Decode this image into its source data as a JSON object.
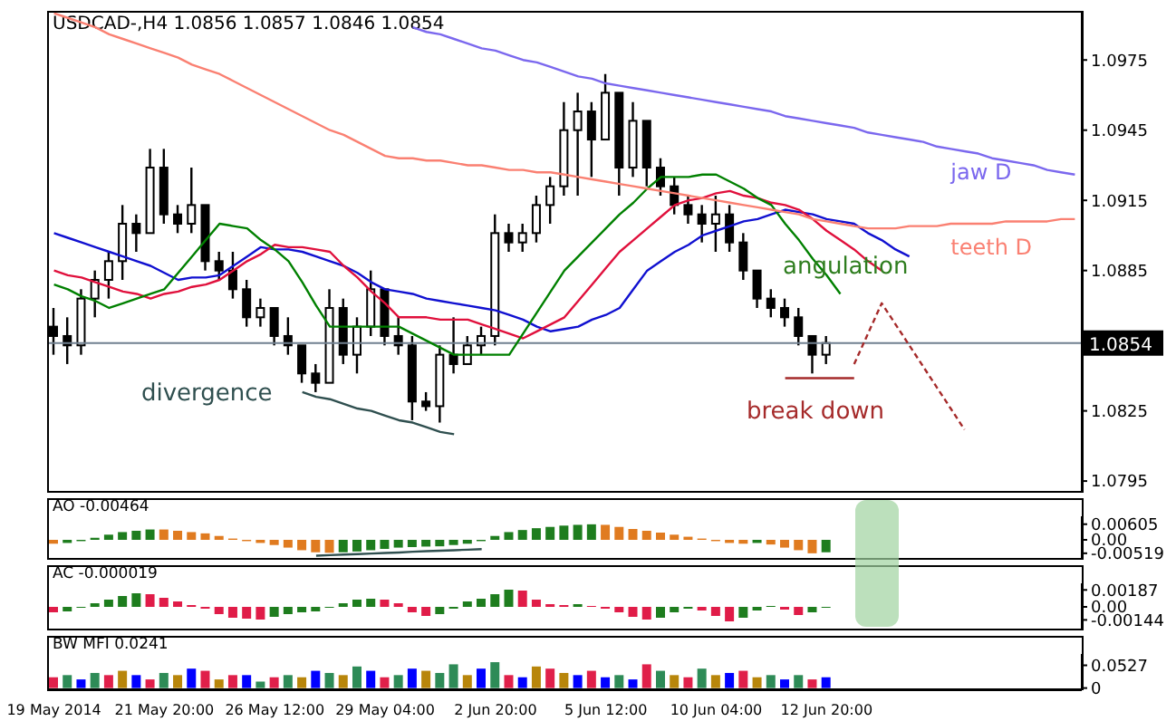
{
  "chart_data": [
    {
      "type": "candlestick",
      "title": "USDCAD-,H4 1.0856 1.0857 1.0846 1.0854",
      "ohlc": [
        [
          1.0861,
          1.0869,
          1.0849,
          1.0857
        ],
        [
          1.0857,
          1.0865,
          1.0845,
          1.0853
        ],
        [
          1.0853,
          1.0877,
          1.0849,
          1.0873
        ],
        [
          1.0873,
          1.0885,
          1.0865,
          1.0881
        ],
        [
          1.0881,
          1.0893,
          1.0873,
          1.0889
        ],
        [
          1.0889,
          1.0913,
          1.0881,
          1.0905
        ],
        [
          1.0905,
          1.0909,
          1.0893,
          1.0901
        ],
        [
          1.0901,
          1.0937,
          1.0901,
          1.0929
        ],
        [
          1.0929,
          1.0937,
          1.0905,
          1.0909
        ],
        [
          1.0909,
          1.0913,
          1.0901,
          1.0905
        ],
        [
          1.0905,
          1.0929,
          1.0901,
          1.0913
        ],
        [
          1.0913,
          1.0913,
          1.0885,
          1.0889
        ],
        [
          1.0889,
          1.0893,
          1.0881,
          1.0885
        ],
        [
          1.0885,
          1.0893,
          1.0873,
          1.0877
        ],
        [
          1.0877,
          1.0881,
          1.0861,
          1.0865
        ],
        [
          1.0865,
          1.0873,
          1.0861,
          1.0869
        ],
        [
          1.0869,
          1.0869,
          1.0853,
          1.0857
        ],
        [
          1.0857,
          1.0865,
          1.0849,
          1.0853
        ],
        [
          1.0853,
          1.0853,
          1.0837,
          1.0841
        ],
        [
          1.0841,
          1.0845,
          1.0833,
          1.0837
        ],
        [
          1.0837,
          1.0877,
          1.0837,
          1.0869
        ],
        [
          1.0869,
          1.0873,
          1.0845,
          1.0849
        ],
        [
          1.0849,
          1.0865,
          1.0841,
          1.0861
        ],
        [
          1.0861,
          1.0885,
          1.0857,
          1.0877
        ],
        [
          1.0877,
          1.0877,
          1.0853,
          1.0857
        ],
        [
          1.0857,
          1.0865,
          1.0849,
          1.0853
        ],
        [
          1.0853,
          1.0857,
          1.0821,
          1.0829
        ],
        [
          1.0829,
          1.0833,
          1.0825,
          1.0827
        ],
        [
          1.0827,
          1.0853,
          1.082,
          1.0849
        ],
        [
          1.0849,
          1.0865,
          1.0841,
          1.0845
        ],
        [
          1.0845,
          1.0857,
          1.0845,
          1.0853
        ],
        [
          1.0853,
          1.0861,
          1.0849,
          1.0857
        ],
        [
          1.0857,
          1.0909,
          1.0853,
          1.0901
        ],
        [
          1.0901,
          1.0905,
          1.0893,
          1.0897
        ],
        [
          1.0897,
          1.0905,
          1.0893,
          1.0901
        ],
        [
          1.0901,
          1.0917,
          1.0897,
          1.0913
        ],
        [
          1.0913,
          1.0925,
          1.0905,
          1.0921
        ],
        [
          1.0921,
          1.0957,
          1.0917,
          1.0945
        ],
        [
          1.0945,
          1.0961,
          1.0917,
          1.0953
        ],
        [
          1.0953,
          1.0957,
          1.0925,
          1.0941
        ],
        [
          1.0941,
          1.0969,
          1.0941,
          1.0961
        ],
        [
          1.0961,
          1.0961,
          1.0917,
          1.0929
        ],
        [
          1.0929,
          1.0957,
          1.0925,
          1.0949
        ],
        [
          1.0949,
          1.0949,
          1.0921,
          1.0929
        ],
        [
          1.0929,
          1.0933,
          1.0917,
          1.0921
        ],
        [
          1.0921,
          1.0925,
          1.0909,
          1.0913
        ],
        [
          1.0913,
          1.0917,
          1.0905,
          1.0909
        ],
        [
          1.0909,
          1.0913,
          1.0897,
          1.0905
        ],
        [
          1.0905,
          1.0917,
          1.0893,
          1.0909
        ],
        [
          1.0909,
          1.0913,
          1.0893,
          1.0897
        ],
        [
          1.0897,
          1.0901,
          1.0881,
          1.0885
        ],
        [
          1.0885,
          1.0885,
          1.0869,
          1.0873
        ],
        [
          1.0873,
          1.0877,
          1.0865,
          1.0869
        ],
        [
          1.0869,
          1.0873,
          1.0861,
          1.0865
        ],
        [
          1.0865,
          1.0869,
          1.0853,
          1.0857
        ],
        [
          1.0857,
          1.0857,
          1.0841,
          1.0849
        ],
        [
          1.0849,
          1.0857,
          1.0845,
          1.0854
        ],
        null,
        null,
        null,
        null,
        null,
        null,
        null,
        null,
        null,
        null,
        null,
        null,
        null,
        null,
        null,
        null,
        null,
        null
      ],
      "series": [
        {
          "type": "line",
          "color": "#1010d0",
          "values": [
            1.0901,
            1.0899,
            1.0897,
            1.0895,
            1.0893,
            1.0891,
            1.0889,
            1.0887,
            1.0884,
            1.0881,
            1.0882,
            1.0882,
            1.0883,
            1.0887,
            1.0891,
            1.0895,
            1.0894,
            1.0894,
            1.0893,
            1.0891,
            1.0889,
            1.0887,
            1.0884,
            1.088,
            1.0877,
            1.0876,
            1.0875,
            1.0873,
            1.0872,
            1.0871,
            1.087,
            1.0869,
            1.0868,
            1.0866,
            1.0864,
            1.0861,
            1.0859,
            1.086,
            1.0861,
            1.0864,
            1.0866,
            1.0869,
            1.0877,
            1.0885,
            1.0889,
            1.0893,
            1.0896,
            1.09,
            1.0902,
            1.0904,
            1.0906,
            1.0907,
            1.0909,
            1.0911,
            1.091,
            1.0909,
            1.0907,
            1.0906,
            1.0905,
            1.0901,
            1.0898,
            1.0894,
            1.0891,
            null,
            null,
            null,
            null,
            null,
            null,
            null,
            null,
            null,
            null,
            null,
            null
          ]
        },
        {
          "type": "line",
          "color": "#e0103c",
          "values": [
            1.0885,
            1.0883,
            1.0882,
            1.088,
            1.0878,
            1.0876,
            1.0875,
            1.0873,
            1.0875,
            1.0876,
            1.0878,
            1.0879,
            1.0881,
            1.0885,
            1.0889,
            1.0892,
            1.0896,
            1.0895,
            1.0895,
            1.0894,
            1.0893,
            1.0887,
            1.0882,
            1.0876,
            1.0871,
            1.0865,
            1.0865,
            1.0865,
            1.0864,
            1.0864,
            1.0864,
            1.0862,
            1.086,
            1.0858,
            1.0856,
            1.0859,
            1.0862,
            1.0865,
            1.0872,
            1.0879,
            1.0886,
            1.0893,
            1.0898,
            1.0903,
            1.0908,
            1.0913,
            1.0915,
            1.0916,
            1.0918,
            1.0919,
            1.0917,
            1.0916,
            1.0914,
            1.0913,
            1.0911,
            1.0907,
            1.0902,
            1.0898,
            1.0894,
            1.0889,
            1.0885,
            null,
            null,
            null,
            null,
            null,
            null,
            null,
            null,
            null,
            null,
            null,
            null,
            null,
            null
          ]
        },
        {
          "type": "line",
          "color": "#008000",
          "values": [
            1.0879,
            1.0877,
            1.0874,
            1.0872,
            1.0869,
            1.0871,
            1.0873,
            1.0875,
            1.0877,
            1.0884,
            1.0891,
            1.0898,
            1.0905,
            1.0904,
            1.0903,
            1.0898,
            1.0894,
            1.0889,
            1.088,
            1.087,
            1.0861,
            1.0861,
            1.0861,
            1.0861,
            1.0861,
            1.0861,
            1.0858,
            1.0855,
            1.0852,
            1.0849,
            1.0849,
            1.0849,
            1.0849,
            1.0849,
            1.0858,
            1.0867,
            1.0876,
            1.0885,
            1.0891,
            1.0897,
            1.0903,
            1.0909,
            1.0914,
            1.092,
            1.0925,
            1.0925,
            1.0925,
            1.0926,
            1.0926,
            1.0923,
            1.092,
            1.0916,
            1.0913,
            1.0905,
            1.0898,
            1.089,
            1.0883,
            1.0875,
            null,
            null,
            null,
            null,
            null,
            null,
            null,
            null,
            null,
            null,
            null,
            null,
            null,
            null,
            null,
            null,
            null
          ]
        },
        {
          "type": "line",
          "name": "jaw D",
          "color": "#7b68ee",
          "values": [
            null,
            null,
            null,
            null,
            null,
            null,
            null,
            null,
            null,
            null,
            null,
            null,
            null,
            null,
            null,
            null,
            null,
            null,
            null,
            null,
            null,
            null,
            null,
            null,
            null,
            null,
            1.0989,
            1.0987,
            1.0986,
            1.0984,
            1.0982,
            1.098,
            1.0979,
            1.0977,
            1.0975,
            1.0974,
            1.0972,
            1.097,
            1.0968,
            1.0967,
            1.0965,
            1.0964,
            1.0963,
            1.0962,
            1.0961,
            1.096,
            1.0959,
            1.0958,
            1.0957,
            1.0956,
            1.0955,
            1.0954,
            1.0953,
            1.0951,
            1.095,
            1.0949,
            1.0948,
            1.0947,
            1.0946,
            1.0944,
            1.0943,
            1.0942,
            1.0941,
            1.094,
            1.0938,
            1.0937,
            1.0936,
            1.0935,
            1.0933,
            1.0932,
            1.0931,
            1.093,
            1.0928,
            1.0927,
            1.0926
          ]
        },
        {
          "type": "line",
          "name": "teeth D",
          "color": "#fa8072",
          "values": [
            1.0995,
            1.0993,
            1.0991,
            1.0989,
            1.0986,
            1.0984,
            1.0982,
            1.098,
            1.0978,
            1.0976,
            1.0973,
            1.0971,
            1.0969,
            1.0966,
            1.0963,
            1.096,
            1.0957,
            1.0954,
            1.0951,
            1.0948,
            1.0945,
            1.0943,
            1.094,
            1.0937,
            1.0934,
            1.0933,
            1.0933,
            1.0932,
            1.0932,
            1.0931,
            1.093,
            1.093,
            1.0929,
            1.0928,
            1.0928,
            1.0927,
            1.0927,
            1.0926,
            1.0925,
            1.0924,
            1.0923,
            1.0922,
            1.0921,
            1.092,
            1.0919,
            1.0918,
            1.0917,
            1.0916,
            1.0915,
            1.0914,
            1.0913,
            1.0912,
            1.0911,
            1.091,
            1.0909,
            1.0907,
            1.0906,
            1.0905,
            1.0904,
            1.0903,
            1.0903,
            1.0903,
            1.0904,
            1.0904,
            1.0904,
            1.0905,
            1.0905,
            1.0905,
            1.0905,
            1.0906,
            1.0906,
            1.0906,
            1.0906,
            1.0907,
            1.0907
          ]
        },
        {
          "type": "line",
          "color": "#2f4f4f",
          "values": [
            null,
            null,
            null,
            null,
            null,
            null,
            null,
            null,
            null,
            null,
            null,
            null,
            null,
            null,
            null,
            null,
            null,
            null,
            1.0833,
            1.0831,
            1.083,
            1.0828,
            1.0826,
            1.0825,
            1.0823,
            1.0821,
            1.082,
            1.0818,
            1.0816,
            1.0815,
            null,
            null,
            null,
            null,
            null,
            null,
            null,
            null,
            null,
            null,
            null,
            null,
            null,
            null,
            null,
            null,
            null,
            null,
            null,
            null,
            null,
            null,
            null,
            null,
            null,
            null,
            null,
            null,
            null,
            null,
            null,
            null,
            null,
            null,
            null,
            null,
            null,
            null,
            null,
            null,
            null,
            null,
            null,
            null,
            null
          ]
        },
        {
          "type": "line",
          "color": "#a52a2a",
          "values": [
            null,
            null,
            null,
            null,
            null,
            null,
            null,
            null,
            null,
            null,
            null,
            null,
            null,
            null,
            null,
            null,
            null,
            null,
            null,
            null,
            null,
            null,
            null,
            null,
            null,
            null,
            null,
            null,
            null,
            null,
            null,
            null,
            null,
            null,
            null,
            null,
            null,
            null,
            null,
            null,
            null,
            null,
            null,
            null,
            null,
            null,
            null,
            null,
            null,
            null,
            null,
            null,
            null,
            1.0839,
            1.0839,
            1.0839,
            1.0839,
            1.0839,
            1.0839,
            null,
            null,
            null,
            null,
            null,
            null,
            null,
            null,
            null,
            null,
            null,
            null,
            null,
            null,
            null,
            null
          ]
        },
        {
          "type": "line",
          "color": "#a52a2a",
          "line_style": "dashed",
          "values": [
            null,
            null,
            null,
            null,
            null,
            null,
            null,
            null,
            null,
            null,
            null,
            null,
            null,
            null,
            null,
            null,
            null,
            null,
            null,
            null,
            null,
            null,
            null,
            null,
            null,
            null,
            null,
            null,
            null,
            null,
            null,
            null,
            null,
            null,
            null,
            null,
            null,
            null,
            null,
            null,
            null,
            null,
            null,
            null,
            null,
            null,
            null,
            null,
            null,
            null,
            null,
            null,
            null,
            null,
            null,
            null,
            null,
            null,
            1.0845,
            1.0858,
            1.0871,
            1.0862,
            1.0853,
            1.0844,
            1.0835,
            1.0826,
            1.0817,
            null,
            null,
            null,
            null,
            null,
            null,
            null,
            null
          ]
        }
      ],
      "annotations": [
        "divergence",
        "angulation",
        "break down"
      ],
      "ref_lines": [
        {
          "axis": "y",
          "value": 1.0854,
          "label": "1.0854",
          "color": "#708090"
        }
      ],
      "ylim": [
        1.079,
        1.0996
      ],
      "yticks": [
        1.0795,
        1.0825,
        1.0885,
        1.0915,
        1.0945,
        1.0975
      ],
      "tick_labels": "y"
    },
    {
      "type": "bar",
      "title": "AO -0.00464",
      "values": [
        -0.0015,
        -0.0012,
        -0.0005,
        0.0008,
        0.002,
        0.003,
        0.0035,
        0.004,
        0.004,
        0.0035,
        0.003,
        0.0025,
        0.0015,
        0.0005,
        -0.0005,
        -0.0012,
        -0.002,
        -0.003,
        -0.004,
        -0.0048,
        -0.005,
        -0.0048,
        -0.0045,
        -0.004,
        -0.0035,
        -0.003,
        -0.0028,
        -0.0026,
        -0.0025,
        -0.002,
        -0.0015,
        -0.0005,
        0.0015,
        0.003,
        0.0038,
        0.0045,
        0.005,
        0.0055,
        0.0058,
        0.006,
        0.0058,
        0.005,
        0.0042,
        0.0035,
        0.0028,
        0.002,
        0.0012,
        0.0005,
        -0.0005,
        -0.0012,
        -0.0015,
        -0.0012,
        -0.0018,
        -0.003,
        -0.004,
        -0.0052,
        -0.0048,
        null,
        null,
        null,
        null,
        null,
        null,
        null,
        null,
        null,
        null,
        null,
        null,
        null,
        null,
        null,
        null,
        null,
        null
      ],
      "colors": [
        "#e07b20",
        "#1e7d1e",
        "#1e7d1e",
        "#1e7d1e",
        "#1e7d1e",
        "#1e7d1e",
        "#1e7d1e",
        "#1e7d1e",
        "#e07b20",
        "#e07b20",
        "#e07b20",
        "#e07b20",
        "#e07b20",
        "#e07b20",
        "#e07b20",
        "#e07b20",
        "#e07b20",
        "#e07b20",
        "#e07b20",
        "#e07b20",
        "#e07b20",
        "#1e7d1e",
        "#1e7d1e",
        "#1e7d1e",
        "#1e7d1e",
        "#1e7d1e",
        "#1e7d1e",
        "#1e7d1e",
        "#1e7d1e",
        "#1e7d1e",
        "#1e7d1e",
        "#1e7d1e",
        "#1e7d1e",
        "#1e7d1e",
        "#1e7d1e",
        "#1e7d1e",
        "#1e7d1e",
        "#1e7d1e",
        "#1e7d1e",
        "#1e7d1e",
        "#e07b20",
        "#e07b20",
        "#e07b20",
        "#e07b20",
        "#e07b20",
        "#e07b20",
        "#e07b20",
        "#e07b20",
        "#e07b20",
        "#e07b20",
        "#e07b20",
        "#1e7d1e",
        "#e07b20",
        "#e07b20",
        "#e07b20",
        "#e07b20",
        "#1e7d1e",
        "#1e7d1e",
        "#1e7d1e",
        "#1e7d1e",
        "#1e7d1e",
        "#1e7d1e",
        "#1e7d1e",
        "#1e7d1e",
        "#1e7d1e",
        "#1e7d1e",
        "#1e7d1e",
        "#1e7d1e",
        "#1e7d1e",
        "#1e7d1e",
        "#1e7d1e",
        "#1e7d1e",
        "#1e7d1e",
        "#1e7d1e",
        "#1e7d1e"
      ],
      "series": [
        {
          "type": "line",
          "color": "#2f4f4f",
          "values": [
            null,
            null,
            null,
            null,
            null,
            null,
            null,
            null,
            null,
            null,
            null,
            null,
            null,
            null,
            null,
            null,
            null,
            null,
            null,
            -0.0061,
            -0.0059,
            -0.0057,
            -0.0055,
            -0.0053,
            -0.0051,
            -0.0049,
            -0.0046,
            -0.0044,
            -0.0042,
            -0.004,
            -0.0038,
            -0.0036,
            null,
            null,
            null,
            null,
            null,
            null,
            null,
            null,
            null,
            null,
            null,
            null,
            null,
            null,
            null,
            null,
            null,
            null,
            null,
            null,
            null,
            null,
            null,
            null,
            null,
            null,
            null,
            null,
            null,
            null,
            null,
            null,
            null,
            null,
            null,
            null,
            null,
            null,
            null,
            null,
            null,
            null,
            null
          ]
        }
      ],
      "ylim": [
        -0.0077,
        0.0091
      ],
      "yticks": [
        {
          "value": -0.00519,
          "label": "-0.00519"
        },
        {
          "value": 0,
          "label": "0.00"
        },
        {
          "value": 0.00605,
          "label": "0.00605"
        }
      ],
      "tick_labels": "y"
    },
    {
      "type": "bar",
      "title": "AC -0.000019",
      "values": [
        -0.0006,
        -0.0005,
        -0.0001,
        0.0004,
        0.0008,
        0.0012,
        0.0015,
        0.0014,
        0.001,
        0.0006,
        0.0002,
        -0.0002,
        -0.0008,
        -0.0012,
        -0.0013,
        -0.0014,
        -0.0011,
        -0.0008,
        -0.0006,
        -0.0005,
        -0.0001,
        0.0004,
        0.0008,
        0.0009,
        0.0008,
        0.0004,
        -0.0006,
        -0.001,
        -0.0008,
        -0.0002,
        0.0006,
        0.0009,
        0.0014,
        0.0019,
        0.0018,
        0.0008,
        0.0003,
        0.0002,
        0.0003,
        0.0001,
        -0.0002,
        -0.0006,
        -0.0011,
        -0.0014,
        -0.0012,
        -0.0006,
        -0.0002,
        -0.0004,
        -0.001,
        -0.0016,
        -0.0012,
        -0.0004,
        0.0001,
        -0.0003,
        -0.0009,
        -0.0006,
        -0.0001,
        null,
        null,
        null,
        null,
        null,
        null,
        null,
        null,
        null,
        null,
        null,
        null,
        null,
        null,
        null,
        null,
        null,
        null
      ],
      "colors": [
        "#e01c48",
        "#1e7d1e",
        "#1e7d1e",
        "#1e7d1e",
        "#1e7d1e",
        "#1e7d1e",
        "#1e7d1e",
        "#e01c48",
        "#e01c48",
        "#e01c48",
        "#e01c48",
        "#e01c48",
        "#e01c48",
        "#e01c48",
        "#e01c48",
        "#e01c48",
        "#1e7d1e",
        "#1e7d1e",
        "#1e7d1e",
        "#1e7d1e",
        "#1e7d1e",
        "#1e7d1e",
        "#1e7d1e",
        "#1e7d1e",
        "#e01c48",
        "#e01c48",
        "#e01c48",
        "#e01c48",
        "#1e7d1e",
        "#1e7d1e",
        "#1e7d1e",
        "#1e7d1e",
        "#1e7d1e",
        "#1e7d1e",
        "#e01c48",
        "#e01c48",
        "#e01c48",
        "#e01c48",
        "#1e7d1e",
        "#e01c48",
        "#e01c48",
        "#e01c48",
        "#e01c48",
        "#e01c48",
        "#1e7d1e",
        "#1e7d1e",
        "#1e7d1e",
        "#e01c48",
        "#e01c48",
        "#e01c48",
        "#1e7d1e",
        "#1e7d1e",
        "#1e7d1e",
        "#e01c48",
        "#e01c48",
        "#1e7d1e",
        "#1e7d1e",
        "#1e7d1e",
        "#1e7d1e",
        "#1e7d1e",
        "#1e7d1e",
        "#1e7d1e",
        "#1e7d1e",
        "#1e7d1e",
        "#1e7d1e",
        "#1e7d1e",
        "#1e7d1e",
        "#1e7d1e",
        "#1e7d1e",
        "#1e7d1e",
        "#1e7d1e",
        "#1e7d1e",
        "#1e7d1e",
        "#1e7d1e",
        "#1e7d1e"
      ],
      "ylim": [
        -0.0026,
        0.0026
      ],
      "yticks": [
        {
          "value": -0.00144,
          "label": "-0.00144"
        },
        {
          "value": 0,
          "label": "0.00"
        },
        {
          "value": 0.00187,
          "label": "0.00187"
        }
      ],
      "tick_labels": "y"
    },
    {
      "type": "bar",
      "title": "BW MFI 0.0241",
      "categories": [
        "19 May 2014",
        null,
        null,
        null,
        null,
        null,
        null,
        null,
        "21 May 20:00",
        null,
        null,
        null,
        null,
        null,
        null,
        null,
        "26 May 12:00",
        null,
        null,
        null,
        null,
        null,
        null,
        null,
        "29 May 04:00",
        null,
        null,
        null,
        null,
        null,
        null,
        null,
        "2 Jun 20:00",
        null,
        null,
        null,
        null,
        null,
        null,
        null,
        "5 Jun 12:00",
        null,
        null,
        null,
        null,
        null,
        null,
        null,
        "10 Jun 04:00",
        null,
        null,
        null,
        null,
        null,
        null,
        null,
        "12 Jun 20:00",
        null,
        null,
        null,
        null,
        null,
        null,
        null,
        null,
        null,
        null,
        null,
        null,
        null,
        null,
        null,
        null,
        null,
        null
      ],
      "values": [
        0.025,
        0.03,
        0.02,
        0.035,
        0.03,
        0.04,
        0.03,
        0.02,
        0.035,
        0.03,
        0.045,
        0.04,
        0.02,
        0.03,
        0.03,
        0.015,
        0.025,
        0.03,
        0.025,
        0.04,
        0.035,
        0.03,
        0.05,
        0.04,
        0.025,
        0.03,
        0.045,
        0.04,
        0.035,
        0.055,
        0.03,
        0.045,
        0.06,
        0.03,
        0.025,
        0.05,
        0.045,
        0.035,
        0.03,
        0.04,
        0.025,
        0.03,
        0.02,
        0.055,
        0.04,
        0.03,
        0.025,
        0.045,
        0.03,
        0.035,
        0.04,
        0.025,
        0.03,
        0.02,
        0.03,
        0.02,
        0.025,
        null,
        null,
        null,
        null,
        null,
        null,
        null,
        null,
        null,
        null,
        null,
        null,
        null,
        null,
        null,
        null,
        null,
        null
      ],
      "colors": [
        "#e0204a",
        "#2e8b57",
        "#0000ff",
        "#2e8b57",
        "#e0204a",
        "#b8860b",
        "#0000ff",
        "#e0204a",
        "#2e8b57",
        "#b8860b",
        "#0000ff",
        "#e0204a",
        "#b8860b",
        "#e0204a",
        "#0000ff",
        "#2e8b57",
        "#e0204a",
        "#2e8b57",
        "#b8860b",
        "#0000ff",
        "#2e8b57",
        "#b8860b",
        "#2e8b57",
        "#0000ff",
        "#e0204a",
        "#2e8b57",
        "#0000ff",
        "#b8860b",
        "#2e8b57",
        "#2e8b57",
        "#b8860b",
        "#0000ff",
        "#2e8b57",
        "#e0204a",
        "#0000ff",
        "#b8860b",
        "#e0204a",
        "#b8860b",
        "#0000ff",
        "#e0204a",
        "#0000ff",
        "#2e8b57",
        "#0000ff",
        "#e0204a",
        "#2e8b57",
        "#b8860b",
        "#e0204a",
        "#2e8b57",
        "#b8860b",
        "#0000ff",
        "#e0204a",
        "#b8860b",
        "#2e8b57",
        "#0000ff",
        "#2e8b57",
        "#e0204a",
        "#0000ff",
        "#0000ff",
        "#0000ff",
        "#0000ff",
        "#0000ff",
        "#0000ff",
        "#0000ff",
        "#0000ff",
        "#0000ff",
        "#0000ff",
        "#0000ff",
        "#0000ff",
        "#0000ff",
        "#0000ff",
        "#0000ff",
        "#0000ff",
        "#0000ff",
        "#0000ff",
        "#0000ff"
      ],
      "ylim": [
        -0.005,
        0.079
      ],
      "yticks": [
        0,
        0.0527
      ]
    }
  ]
}
